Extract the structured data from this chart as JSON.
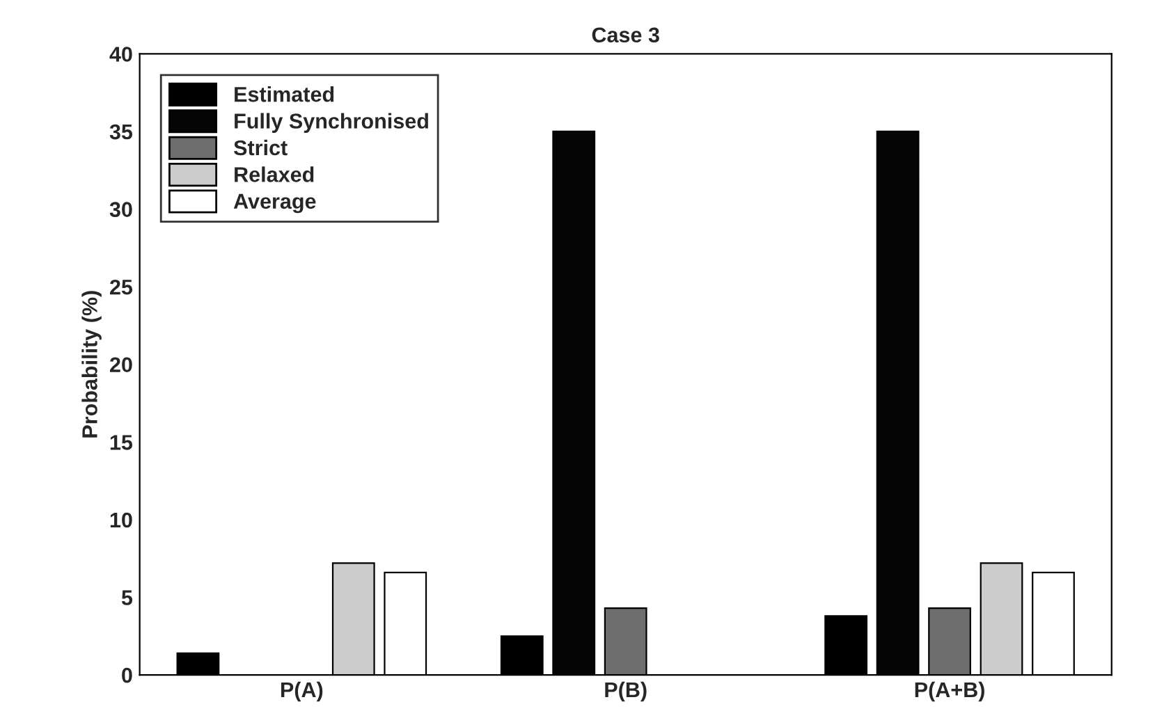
{
  "chart_data": {
    "type": "bar",
    "title": "Case 3",
    "ylabel": "Probability (%)",
    "categories": [
      "P(A)",
      "P(B)",
      "P(A+B)"
    ],
    "series": [
      {
        "name": "Estimated",
        "color": "#000000",
        "values": [
          1.4,
          2.5,
          3.8
        ]
      },
      {
        "name": "Fully Synchronised",
        "color": "#050505",
        "values": [
          0,
          35,
          35
        ]
      },
      {
        "name": "Strict",
        "color": "#6e6e6e",
        "values": [
          0,
          4.3,
          4.3
        ]
      },
      {
        "name": "Relaxed",
        "color": "#cccccc",
        "values": [
          7.2,
          0,
          7.2
        ]
      },
      {
        "name": "Average",
        "color": "#ffffff",
        "values": [
          6.6,
          0,
          6.6
        ]
      }
    ],
    "ylim": [
      0,
      40
    ],
    "yticks": [
      0,
      5,
      10,
      15,
      20,
      25,
      30,
      35,
      40
    ],
    "grid": false,
    "legend": "top left"
  }
}
